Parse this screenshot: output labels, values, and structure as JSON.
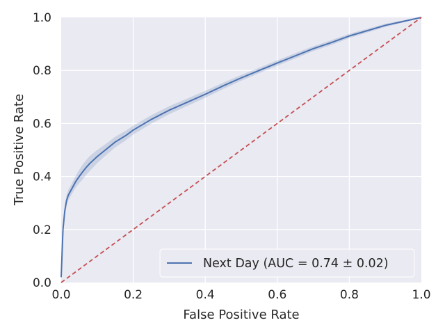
{
  "chart_data": {
    "type": "line",
    "xlabel": "False Positive Rate",
    "ylabel": "True Positive Rate",
    "xlim": [
      0,
      1
    ],
    "ylim": [
      0,
      1
    ],
    "x_ticks": [
      "0.0",
      "0.2",
      "0.4",
      "0.6",
      "0.8",
      "1.0"
    ],
    "y_ticks": [
      "0.0",
      "0.2",
      "0.4",
      "0.6",
      "0.8",
      "1.0"
    ],
    "grid": true,
    "legend_position": "bottom-right",
    "series": [
      {
        "name": "Next Day (AUC = 0.74 ± 0.02)",
        "color": "#4c72b0",
        "band_color": "#4c72b0",
        "x": [
          0,
          0.005,
          0.01,
          0.015,
          0.02,
          0.03,
          0.04,
          0.05,
          0.06,
          0.07,
          0.08,
          0.1,
          0.12,
          0.15,
          0.18,
          0.2,
          0.25,
          0.3,
          0.35,
          0.4,
          0.45,
          0.5,
          0.55,
          0.6,
          0.65,
          0.7,
          0.75,
          0.8,
          0.85,
          0.9,
          0.95,
          1.0
        ],
        "y": [
          0.02,
          0.2,
          0.27,
          0.31,
          0.33,
          0.355,
          0.38,
          0.4,
          0.418,
          0.435,
          0.45,
          0.475,
          0.497,
          0.53,
          0.555,
          0.575,
          0.615,
          0.65,
          0.68,
          0.71,
          0.742,
          0.772,
          0.8,
          0.828,
          0.855,
          0.882,
          0.905,
          0.93,
          0.95,
          0.97,
          0.985,
          1.0
        ],
        "band_halfwidth": [
          0.0,
          0.02,
          0.02,
          0.02,
          0.02,
          0.02,
          0.022,
          0.025,
          0.028,
          0.028,
          0.028,
          0.025,
          0.022,
          0.02,
          0.018,
          0.017,
          0.016,
          0.015,
          0.014,
          0.013,
          0.012,
          0.011,
          0.01,
          0.01,
          0.01,
          0.009,
          0.009,
          0.008,
          0.007,
          0.006,
          0.004,
          0.0
        ]
      },
      {
        "name": "",
        "style": "dashed",
        "color": "#c44e52",
        "x": [
          0,
          1
        ],
        "y": [
          0,
          1
        ]
      }
    ]
  }
}
